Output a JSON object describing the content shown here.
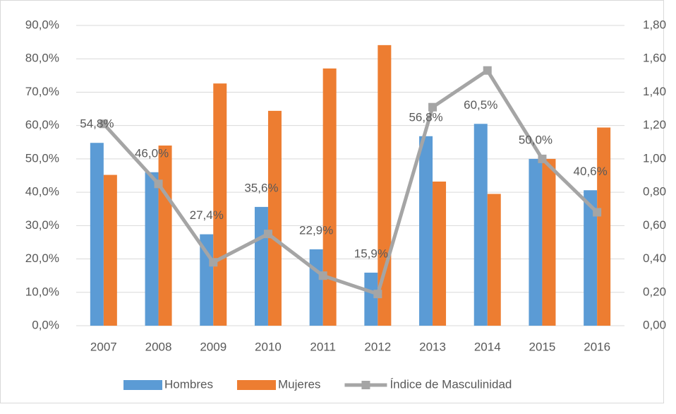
{
  "chart_data": {
    "type": "bar_line",
    "categories": [
      "2007",
      "2008",
      "2009",
      "2010",
      "2011",
      "2012",
      "2013",
      "2014",
      "2015",
      "2016"
    ],
    "series": [
      {
        "name": "Hombres",
        "color": "#5b9bd5",
        "type": "bar",
        "values": [
          54.8,
          46.0,
          27.4,
          35.6,
          22.9,
          15.9,
          56.8,
          60.5,
          50.0,
          40.6
        ],
        "value_labels": [
          "54,8%",
          "46,0%",
          "27,4%",
          "35,6%",
          "22,9%",
          "15,9%",
          "56,8%",
          "60,5%",
          "50,0%",
          "40,6%"
        ]
      },
      {
        "name": "Mujeres",
        "color": "#ed7d31",
        "type": "bar",
        "values": [
          45.2,
          54.0,
          72.6,
          64.4,
          77.1,
          84.1,
          43.2,
          39.5,
          50.0,
          59.4
        ]
      },
      {
        "name": "Índice de Masculinidad",
        "color": "#a5a5a5",
        "type": "line",
        "axis": "y2",
        "values": [
          1.21,
          0.85,
          0.38,
          0.55,
          0.3,
          0.19,
          1.31,
          1.53,
          1.0,
          0.68
        ]
      }
    ],
    "ylim": [
      0,
      90
    ],
    "yticks": [
      {
        "value": 0,
        "label": "0,0%"
      },
      {
        "value": 10,
        "label": "10,0%"
      },
      {
        "value": 20,
        "label": "20,0%"
      },
      {
        "value": 30,
        "label": "30,0%"
      },
      {
        "value": 40,
        "label": "40,0%"
      },
      {
        "value": 50,
        "label": "50,0%"
      },
      {
        "value": 60,
        "label": "60,0%"
      },
      {
        "value": 70,
        "label": "70,0%"
      },
      {
        "value": 80,
        "label": "80,0%"
      },
      {
        "value": 90,
        "label": "90,0%"
      }
    ],
    "y2lim": [
      0,
      1.8
    ],
    "y2ticks": [
      {
        "value": 0,
        "label": "0,00"
      },
      {
        "value": 0.2,
        "label": "0,20"
      },
      {
        "value": 0.4,
        "label": "0,40"
      },
      {
        "value": 0.6,
        "label": "0,60"
      },
      {
        "value": 0.8,
        "label": "0,80"
      },
      {
        "value": 1.0,
        "label": "1,00"
      },
      {
        "value": 1.2,
        "label": "1,20"
      },
      {
        "value": 1.4,
        "label": "1,40"
      },
      {
        "value": 1.6,
        "label": "1,60"
      },
      {
        "value": 1.8,
        "label": "1,80"
      }
    ],
    "grid": true,
    "legend": "bottom"
  }
}
